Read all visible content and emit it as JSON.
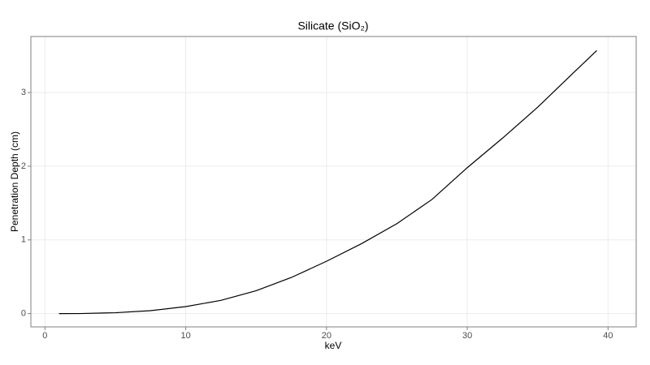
{
  "chart_data": {
    "type": "line",
    "title": "Silicate (SiO₂)",
    "x_label": "keV",
    "y_label": "Penetration Depth (cm)",
    "x": [
      1,
      2.5,
      5,
      7.5,
      10,
      12.5,
      15,
      17.5,
      20,
      22.5,
      25,
      27.5,
      30,
      32.5,
      35,
      37.5,
      39.2
    ],
    "series": [
      {
        "color": "#000000",
        "values": [
          0.0,
          0.001,
          0.012,
          0.04,
          0.095,
          0.18,
          0.31,
          0.49,
          0.71,
          0.95,
          1.22,
          1.55,
          1.98,
          2.38,
          2.8,
          3.26,
          3.57
        ]
      }
    ],
    "xlim": [
      -1,
      42
    ],
    "xticks": [
      0,
      10,
      20,
      30,
      40
    ],
    "ylim": [
      -0.18,
      3.76
    ],
    "yticks": [
      0,
      1,
      2,
      3
    ],
    "grid": true
  }
}
